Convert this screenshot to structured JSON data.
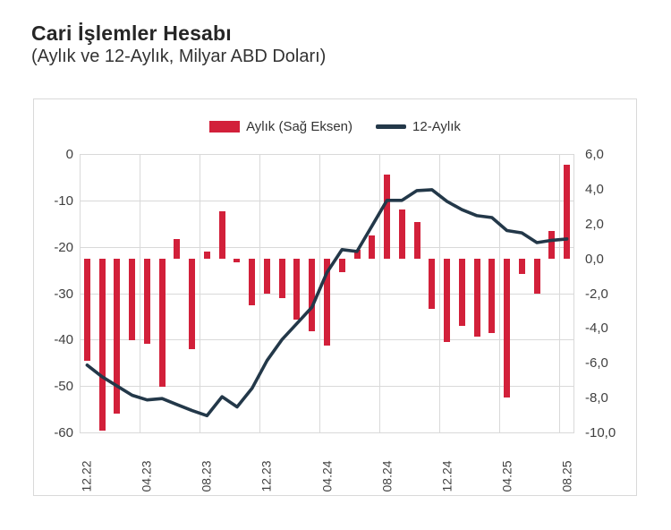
{
  "title": "Cari İşlemler Hesabı",
  "subtitle": "(Aylık ve 12-Aylık, Milyar ABD Doları)",
  "legend": {
    "monthly_label": "Aylık (Sağ Eksen)",
    "twelve_month_label": "12-Aylık"
  },
  "colors": {
    "bar": "#d2203a",
    "line": "#233849",
    "grid": "#d9d9d9",
    "box_border": "#d9d9d9",
    "tick_text": "#404040",
    "title_text": "#262626"
  },
  "left_axis": {
    "ticks": [
      "0",
      "-10",
      "-20",
      "-30",
      "-40",
      "-50",
      "-60"
    ],
    "max": 0,
    "min": -60
  },
  "right_axis": {
    "ticks": [
      "6,0",
      "4,0",
      "2,0",
      "0,0",
      "-2,0",
      "-4,0",
      "-6,0",
      "-8,0",
      "-10,0"
    ],
    "max": 6,
    "min": -10
  },
  "x_axis": {
    "tick_labels": [
      "12.22",
      "04.23",
      "08.23",
      "12.23",
      "04.24",
      "08.24",
      "12.24",
      "04.25",
      "08.25"
    ],
    "label_every_n_months": 4
  },
  "chart_data": {
    "type": "bar+line",
    "title": "Cari İşlemler Hesabı (Aylık ve 12-Aylık, Milyar ABD Doları)",
    "categories": [
      "12.22",
      "01.23",
      "02.23",
      "03.23",
      "04.23",
      "05.23",
      "06.23",
      "07.23",
      "08.23",
      "09.23",
      "10.23",
      "11.23",
      "12.23",
      "01.24",
      "02.24",
      "03.24",
      "04.24",
      "05.24",
      "06.24",
      "07.24",
      "08.24",
      "09.24",
      "10.24",
      "11.24",
      "12.24",
      "01.25",
      "02.25",
      "03.25",
      "04.25",
      "05.25",
      "06.25",
      "07.25",
      "08.25"
    ],
    "series": [
      {
        "name": "Aylık (Sağ Eksen)",
        "type": "bar",
        "axis": "right",
        "values": [
          -5.9,
          -9.9,
          -8.9,
          -4.7,
          -4.9,
          -7.4,
          1.1,
          -5.2,
          0.4,
          2.7,
          -0.2,
          -2.7,
          -2.0,
          -2.3,
          -3.5,
          -4.2,
          -5.0,
          -0.8,
          0.5,
          1.3,
          4.8,
          2.8,
          2.1,
          -2.9,
          -4.8,
          -3.9,
          -4.5,
          -4.3,
          -8.0,
          -0.9,
          -2.0,
          1.6,
          5.4
        ]
      },
      {
        "name": "12-Aylık",
        "type": "line",
        "axis": "left",
        "values": [
          -45.5,
          -48,
          -50,
          -52,
          -53,
          -52.7,
          -54,
          -55.3,
          -56.4,
          -52.3,
          -54.5,
          -50.5,
          -44.5,
          -40,
          -36.5,
          -33,
          -25.5,
          -20.6,
          -21,
          -15.5,
          -10,
          -10,
          -7.9,
          -7.7,
          -10.2,
          -12,
          -13.3,
          -13.7,
          -16.5,
          -17,
          -19.1,
          -18.6,
          -18.3
        ]
      }
    ],
    "left_axis_range": [
      -60,
      0
    ],
    "right_axis_range": [
      -10,
      6
    ],
    "grid": true,
    "legend_position": "top",
    "units": "Milyar ABD Doları"
  }
}
